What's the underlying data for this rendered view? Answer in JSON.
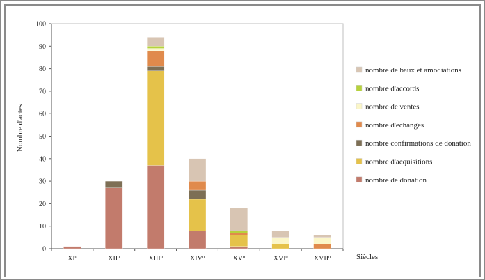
{
  "chart_data": {
    "type": "bar",
    "stacked": true,
    "ylabel": "Nombre d'actes",
    "xlabel": "Siècles",
    "ylim": [
      0,
      100
    ],
    "yticks": [
      0,
      10,
      20,
      30,
      40,
      50,
      60,
      70,
      80,
      90,
      100
    ],
    "grid": false,
    "legend_position": "right",
    "categories": [
      "XIº",
      "XIIº",
      "XIIIº",
      "XIVº",
      "XVº",
      "XVIº",
      "XVIIº"
    ],
    "series": [
      {
        "name": "nombre de donation",
        "color": "#c27b6c",
        "values": [
          1,
          27,
          37,
          8,
          1,
          0,
          0
        ]
      },
      {
        "name": "nombre d'acquisitions",
        "color": "#e5c24a",
        "values": [
          0,
          0,
          42,
          14,
          5,
          2,
          0
        ]
      },
      {
        "name": "nombre  confirmations de donation",
        "color": "#7d6f55",
        "values": [
          0,
          3,
          2,
          4,
          0,
          0,
          0
        ]
      },
      {
        "name": "nombre d'echanges",
        "color": "#e08a4c",
        "values": [
          0,
          0,
          7,
          4,
          1,
          0,
          2
        ]
      },
      {
        "name": "nombre de ventes",
        "color": "#fbf6c8",
        "values": [
          0,
          0,
          1,
          0,
          0,
          3,
          3
        ]
      },
      {
        "name": "nombre d'accords",
        "color": "#b6d23c",
        "values": [
          0,
          0,
          1,
          0,
          1,
          0,
          0
        ]
      },
      {
        "name": "nombre de baux et amodiations",
        "color": "#d8c5b3",
        "values": [
          0,
          0,
          4,
          10,
          10,
          3,
          1
        ]
      }
    ],
    "legend_order": [
      "nombre de baux et amodiations",
      "nombre d'accords",
      "nombre de ventes",
      "nombre d'echanges",
      "nombre  confirmations de donation",
      "nombre d'acquisitions",
      "nombre de donation"
    ]
  }
}
